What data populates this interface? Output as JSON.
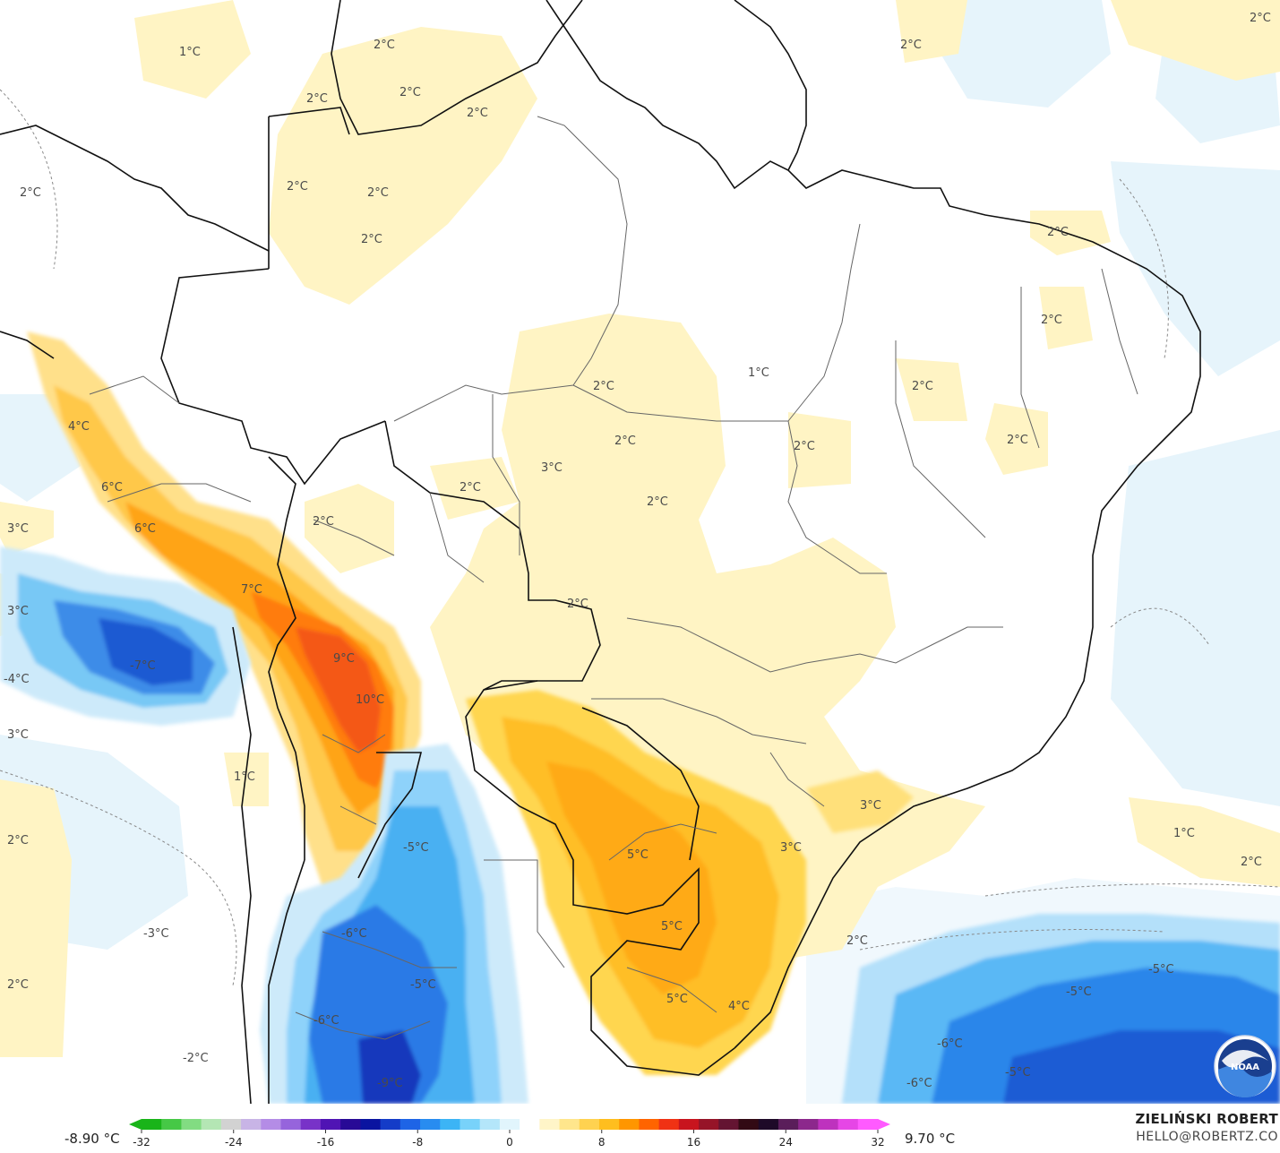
{
  "map": {
    "title": "",
    "temperature_labels": [
      {
        "text": "1°C"
      },
      {
        "text": "2°C"
      },
      {
        "text": "2°C"
      },
      {
        "text": "2°C"
      },
      {
        "text": "2°C"
      },
      {
        "text": "2°C"
      },
      {
        "text": "2°C"
      },
      {
        "text": "2°C"
      },
      {
        "text": "2°C"
      },
      {
        "text": "2°C"
      },
      {
        "text": "2°C"
      },
      {
        "text": "2°C"
      },
      {
        "text": "2°C"
      },
      {
        "text": "1°C"
      },
      {
        "text": "2°C"
      },
      {
        "text": "2°C"
      },
      {
        "text": "3°C"
      },
      {
        "text": "2°C"
      },
      {
        "text": "2°C"
      },
      {
        "text": "2°C"
      },
      {
        "text": "4°C"
      },
      {
        "text": "6°C"
      },
      {
        "text": "6°C"
      },
      {
        "text": "2°C"
      },
      {
        "text": "3°C"
      },
      {
        "text": "2°C"
      },
      {
        "text": "2°C"
      },
      {
        "text": "3°C"
      },
      {
        "text": "7°C"
      },
      {
        "text": "9°C"
      },
      {
        "text": "-7°C"
      },
      {
        "text": "-4°C"
      },
      {
        "text": "10°C"
      },
      {
        "text": "2°C"
      },
      {
        "text": "3°C"
      },
      {
        "text": "1°C"
      },
      {
        "text": "3°C"
      },
      {
        "text": "2°C"
      },
      {
        "text": "-5°C"
      },
      {
        "text": "5°C"
      },
      {
        "text": "3°C"
      },
      {
        "text": "1°C"
      },
      {
        "text": "2°C"
      },
      {
        "text": "-3°C"
      },
      {
        "text": "-6°C"
      },
      {
        "text": "5°C"
      },
      {
        "text": "2°C"
      },
      {
        "text": "2°C"
      },
      {
        "text": "-5°C"
      },
      {
        "text": "-5°C"
      },
      {
        "text": "-5°C"
      },
      {
        "text": "5°C"
      },
      {
        "text": "4°C"
      },
      {
        "text": "-6°C"
      },
      {
        "text": "-2°C"
      },
      {
        "text": "-9°C"
      },
      {
        "text": "-6°C"
      },
      {
        "text": "-5°C"
      },
      {
        "text": "-6°C"
      }
    ]
  },
  "legend": {
    "min_label": "-8.90 °C",
    "max_label": "9.70 °C",
    "ticks": [
      "-32",
      "-24",
      "-16",
      "-8",
      "0",
      "8",
      "16",
      "24",
      "32"
    ],
    "tick_values": [
      -32,
      -24,
      -16,
      -8,
      0,
      8,
      16,
      24,
      32
    ],
    "scale_min": -32,
    "scale_max": 32,
    "colors": [
      "#19b419",
      "#46c846",
      "#82dc82",
      "#b4e6b4",
      "#d2d2d2",
      "#c8b4e6",
      "#b48ce6",
      "#9664dc",
      "#7832c8",
      "#5014b4",
      "#280a96",
      "#0a14a0",
      "#143cc8",
      "#1e64e6",
      "#288cf0",
      "#3cb4f5",
      "#78d2fa",
      "#b4e6fa",
      "#e1f5fc",
      "#ffffff",
      "#fff5c8",
      "#ffe68c",
      "#ffd250",
      "#ffbe1e",
      "#ff9600",
      "#ff6400",
      "#f03214",
      "#c8141e",
      "#961428",
      "#641432",
      "#320a14",
      "#1e0a28",
      "#5a1e5a",
      "#8c288c",
      "#be32be",
      "#e646e6",
      "#ff5aff"
    ]
  },
  "author": {
    "name": "ZIELIŃSKI ROBERT",
    "email": "HELLO@ROBERTZ.CO"
  },
  "logo": {
    "text": "NOAA",
    "icon": "noaa-logo"
  }
}
